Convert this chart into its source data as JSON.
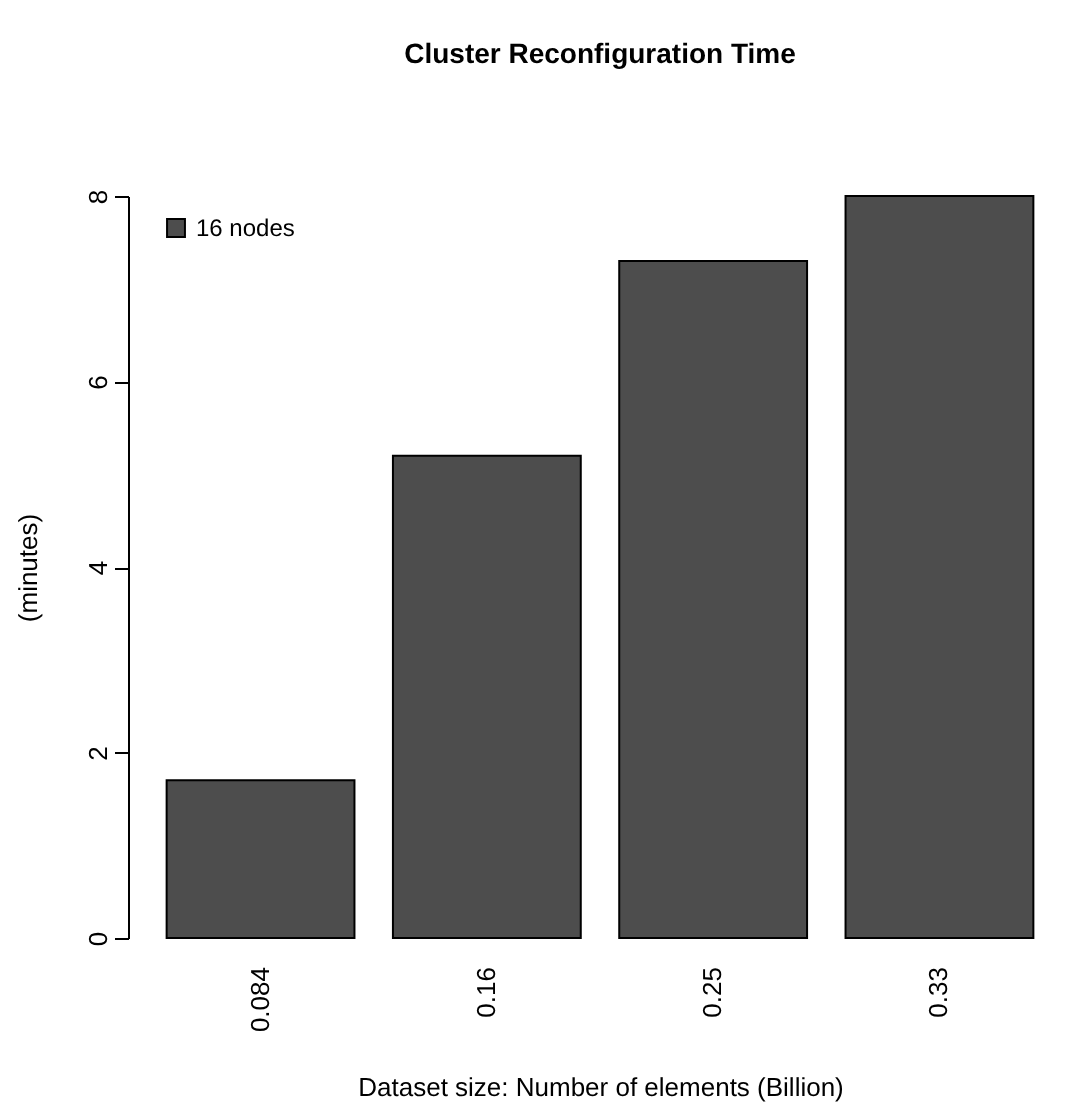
{
  "chart_data": {
    "type": "bar",
    "title": "Cluster Reconfiguration Time",
    "xlabel": "Dataset size: Number of elements (Billion)",
    "ylabel": "(minutes)",
    "categories": [
      "0.084",
      "0.16",
      "0.25",
      "0.33"
    ],
    "series": [
      {
        "name": "16 nodes",
        "color": "#4d4d4d",
        "values": [
          1.7,
          5.2,
          7.3,
          8.0
        ]
      }
    ],
    "ylim": [
      0,
      8
    ],
    "yticks": [
      0,
      2,
      4,
      6,
      8
    ],
    "grid": false,
    "legend": "top left"
  }
}
